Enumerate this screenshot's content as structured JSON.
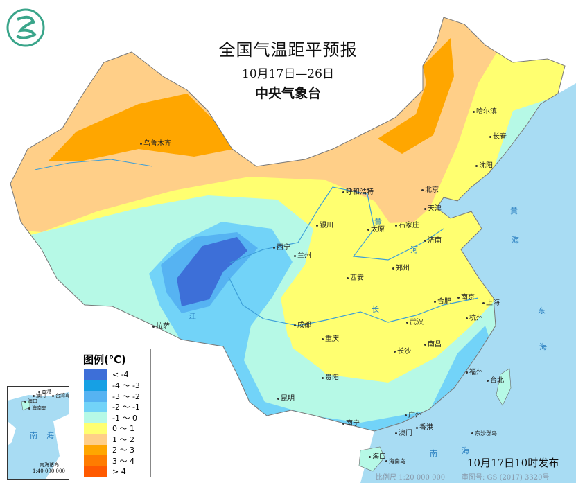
{
  "header": {
    "title": "全国气温距平预报",
    "date_range": "10月17日—26日",
    "issuer": "中央气象台"
  },
  "legend": {
    "title": "图例(℃)",
    "items": [
      {
        "label": "< -4",
        "color": "#3d6fd8"
      },
      {
        "label": "-4 ～ -3",
        "color": "#16a0e4"
      },
      {
        "label": "-3 ～ -2",
        "color": "#56b3f2"
      },
      {
        "label": "-2 ～ -1",
        "color": "#72d3f8"
      },
      {
        "label": "-1 ～ 0",
        "color": "#b6f9e6"
      },
      {
        "label": "0 ～ 1",
        "color": "#ffff70"
      },
      {
        "label": "1 ～ 2",
        "color": "#ffcf88"
      },
      {
        "label": "2 ～ 3",
        "color": "#ffa600"
      },
      {
        "label": "3 ～ 4",
        "color": "#ff7c00"
      },
      {
        "label": "> 4",
        "color": "#ff5a00"
      }
    ]
  },
  "cities": [
    "乌鲁木齐",
    "哈尔滨",
    "长春",
    "沈阳",
    "北京",
    "天津",
    "呼和浩特",
    "石家庄",
    "太原",
    "银川",
    "济南",
    "西宁",
    "兰州",
    "郑州",
    "西安",
    "合肥",
    "南京",
    "上海",
    "杭州",
    "武汉",
    "成都",
    "重庆",
    "拉萨",
    "长沙",
    "南昌",
    "贵阳",
    "福州",
    "台北",
    "昆明",
    "南宁",
    "广州",
    "香港",
    "澳门",
    "海口",
    "海南岛",
    "东沙群岛"
  ],
  "seas": [
    "黄",
    "海",
    "东",
    "海",
    "南",
    "海",
    "长",
    "江",
    "黄",
    "河"
  ],
  "inset": {
    "labels": [
      "海口",
      "海南岛",
      "香港",
      "澳门",
      "台湾岛",
      "南",
      "海",
      "南海诸岛"
    ],
    "scale": "1:40 000 000"
  },
  "footer": {
    "issued": "10月17日10时发布",
    "scale": "比例尺 1:20 000 000",
    "approval": "审图号: GS (2017) 3320号"
  },
  "colors": {
    "sea": "#a8dcf3",
    "emblem": "#3aa58a"
  },
  "icons": {
    "emblem": "cma-logo-icon"
  }
}
